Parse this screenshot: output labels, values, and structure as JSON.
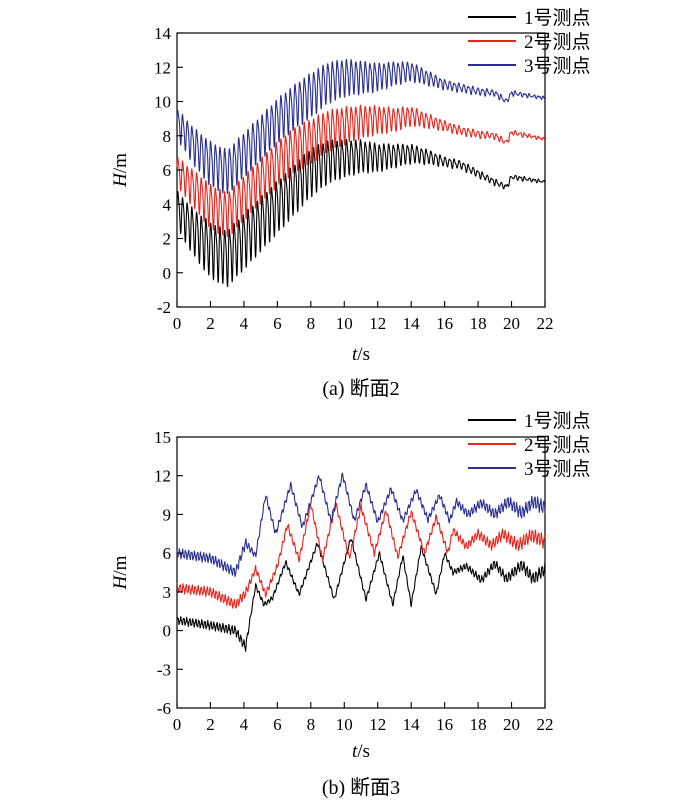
{
  "chart_data": [
    {
      "type": "line",
      "caption": "(a) 断面2",
      "xlabel_var": "t",
      "xlabel_unit": "/s",
      "ylabel_var": "H",
      "ylabel_unit": "/m",
      "xlim": [
        0,
        22
      ],
      "ylim": [
        -2,
        14
      ],
      "xticks": [
        0,
        2,
        4,
        6,
        8,
        10,
        12,
        14,
        16,
        18,
        20,
        22
      ],
      "yticks": [
        -2,
        0,
        2,
        4,
        6,
        8,
        10,
        12,
        14
      ],
      "grid": false,
      "legend_position": "top-right",
      "series": [
        {
          "name": "1号测点",
          "color": "#000000",
          "envelope": [
            [
              0,
              3.8
            ],
            [
              1,
              2.5
            ],
            [
              2,
              1.5
            ],
            [
              3,
              1.0
            ],
            [
              4,
              2.0
            ],
            [
              5,
              3.0
            ],
            [
              6,
              4.0
            ],
            [
              7,
              5.0
            ],
            [
              8,
              6.0
            ],
            [
              9,
              6.6
            ],
            [
              10,
              6.8
            ],
            [
              11,
              6.9
            ],
            [
              12,
              6.8
            ],
            [
              13,
              6.9
            ],
            [
              14,
              7.0
            ],
            [
              15,
              6.8
            ],
            [
              16,
              6.5
            ],
            [
              17,
              6.3
            ],
            [
              18,
              5.8
            ],
            [
              19,
              5.3
            ],
            [
              19.7,
              5.0
            ],
            [
              20,
              5.6
            ],
            [
              22,
              5.3
            ]
          ],
          "amplitude": [
            [
              0,
              1.0
            ],
            [
              2,
              1.5
            ],
            [
              4,
              1.5
            ],
            [
              8,
              1.3
            ],
            [
              10,
              1.0
            ],
            [
              14,
              0.5
            ],
            [
              16,
              0.25
            ],
            [
              19,
              0.15
            ],
            [
              22,
              0.05
            ]
          ]
        },
        {
          "name": "2号测点",
          "color": "#e8231a",
          "envelope": [
            [
              0,
              6.0
            ],
            [
              1,
              5.0
            ],
            [
              2,
              4.0
            ],
            [
              3,
              3.5
            ],
            [
              4,
              4.5
            ],
            [
              5,
              5.5
            ],
            [
              6,
              6.5
            ],
            [
              7,
              7.3
            ],
            [
              8,
              7.8
            ],
            [
              9,
              8.4
            ],
            [
              10,
              8.7
            ],
            [
              11,
              8.9
            ],
            [
              12,
              9.0
            ],
            [
              13,
              9.0
            ],
            [
              14,
              9.2
            ],
            [
              15,
              8.9
            ],
            [
              16,
              8.6
            ],
            [
              17,
              8.3
            ],
            [
              18,
              8.1
            ],
            [
              19,
              8.0
            ],
            [
              19.7,
              7.6
            ],
            [
              20,
              8.2
            ],
            [
              22,
              7.8
            ]
          ],
          "amplitude": [
            [
              0,
              0.8
            ],
            [
              2,
              1.2
            ],
            [
              4,
              1.2
            ],
            [
              8,
              1.2
            ],
            [
              10,
              1.0
            ],
            [
              14,
              0.5
            ],
            [
              16,
              0.25
            ],
            [
              19,
              0.15
            ],
            [
              22,
              0.05
            ]
          ]
        },
        {
          "name": "3号测点",
          "color": "#2a2f8f",
          "envelope": [
            [
              0,
              8.8
            ],
            [
              1,
              7.5
            ],
            [
              2,
              6.5
            ],
            [
              3,
              6.0
            ],
            [
              4,
              7.0
            ],
            [
              5,
              8.0
            ],
            [
              6,
              9.0
            ],
            [
              7,
              9.8
            ],
            [
              8,
              10.5
            ],
            [
              9,
              11.2
            ],
            [
              10,
              11.5
            ],
            [
              11,
              11.5
            ],
            [
              12,
              11.5
            ],
            [
              13,
              11.7
            ],
            [
              14,
              11.8
            ],
            [
              15,
              11.4
            ],
            [
              16,
              11.0
            ],
            [
              17,
              10.8
            ],
            [
              18,
              10.6
            ],
            [
              19,
              10.5
            ],
            [
              19.7,
              10.0
            ],
            [
              20,
              10.5
            ],
            [
              22,
              10.2
            ]
          ],
          "amplitude": [
            [
              0,
              0.8
            ],
            [
              2,
              1.2
            ],
            [
              4,
              1.2
            ],
            [
              8,
              1.2
            ],
            [
              10,
              1.0
            ],
            [
              14,
              0.5
            ],
            [
              16,
              0.25
            ],
            [
              19,
              0.15
            ],
            [
              22,
              0.05
            ]
          ]
        }
      ]
    },
    {
      "type": "line",
      "caption": "(b) 断面3",
      "xlabel_var": "t",
      "xlabel_unit": "/s",
      "ylabel_var": "H",
      "ylabel_unit": "/m",
      "xlim": [
        0,
        22
      ],
      "ylim": [
        -6,
        15
      ],
      "xticks": [
        0,
        2,
        4,
        6,
        8,
        10,
        12,
        14,
        16,
        18,
        20,
        22
      ],
      "yticks": [
        -6,
        -3,
        0,
        3,
        6,
        9,
        12,
        15
      ],
      "grid": false,
      "legend_position": "top-right",
      "series": [
        {
          "name": "1号测点",
          "color": "#000000",
          "peaks": [
            [
              0,
              0.8
            ],
            [
              2,
              0.4
            ],
            [
              3.5,
              0
            ],
            [
              4.1,
              -1.3
            ],
            [
              4.7,
              3.5
            ],
            [
              5.2,
              2.0
            ],
            [
              5.7,
              2.5
            ],
            [
              6.5,
              5.3
            ],
            [
              7.3,
              2.8
            ],
            [
              8.4,
              6.8
            ],
            [
              9.4,
              2.4
            ],
            [
              10.4,
              7.2
            ],
            [
              11.3,
              2.4
            ],
            [
              12.1,
              6.0
            ],
            [
              12.9,
              2.0
            ],
            [
              13.5,
              5.8
            ],
            [
              14.0,
              2.0
            ],
            [
              14.6,
              6.5
            ],
            [
              15.5,
              2.8
            ],
            [
              16.0,
              6.0
            ],
            [
              16.5,
              4.5
            ],
            [
              17.3,
              5.0
            ],
            [
              18.2,
              3.9
            ],
            [
              19.0,
              5.2
            ],
            [
              19.7,
              4.0
            ],
            [
              20.6,
              5.1
            ],
            [
              21.3,
              4.0
            ],
            [
              22,
              4.8
            ]
          ],
          "ripple": [
            [
              0,
              0.25
            ],
            [
              4,
              0.3
            ],
            [
              4.5,
              0.15
            ],
            [
              16,
              0.15
            ],
            [
              22,
              0.4
            ]
          ]
        },
        {
          "name": "2号测点",
          "color": "#e8231a",
          "peaks": [
            [
              0,
              3.3
            ],
            [
              2,
              3.0
            ],
            [
              3.5,
              2.0
            ],
            [
              4.1,
              2.9
            ],
            [
              4.7,
              4.8
            ],
            [
              5.3,
              2.8
            ],
            [
              6.0,
              5.0
            ],
            [
              6.6,
              8.2
            ],
            [
              7.3,
              5.5
            ],
            [
              8.0,
              9.8
            ],
            [
              8.7,
              5.5
            ],
            [
              9.5,
              9.8
            ],
            [
              10.3,
              5.6
            ],
            [
              11.0,
              9.6
            ],
            [
              11.8,
              6.0
            ],
            [
              12.5,
              9.3
            ],
            [
              13.2,
              5.7
            ],
            [
              14.0,
              9.2
            ],
            [
              14.8,
              6.0
            ],
            [
              15.5,
              8.8
            ],
            [
              16.2,
              6.0
            ],
            [
              16.5,
              7.8
            ],
            [
              17.3,
              6.5
            ],
            [
              18.0,
              7.5
            ],
            [
              18.8,
              6.6
            ],
            [
              19.5,
              7.5
            ],
            [
              20.4,
              6.6
            ],
            [
              21.2,
              7.4
            ],
            [
              22,
              6.9
            ]
          ],
          "ripple": [
            [
              0,
              0.3
            ],
            [
              4,
              0.3
            ],
            [
              4.5,
              0.2
            ],
            [
              16,
              0.2
            ],
            [
              22,
              0.45
            ]
          ]
        },
        {
          "name": "3号测点",
          "color": "#2a2f8f",
          "peaks": [
            [
              0,
              6.0
            ],
            [
              2,
              5.6
            ],
            [
              3.5,
              4.5
            ],
            [
              4.1,
              6.8
            ],
            [
              4.7,
              5.8
            ],
            [
              5.3,
              10.5
            ],
            [
              5.9,
              7.5
            ],
            [
              6.8,
              11.3
            ],
            [
              7.5,
              8.0
            ],
            [
              8.5,
              12.0
            ],
            [
              9.2,
              8.5
            ],
            [
              9.9,
              12.1
            ],
            [
              10.6,
              8.5
            ],
            [
              11.3,
              11.3
            ],
            [
              12.0,
              8.4
            ],
            [
              12.8,
              11.0
            ],
            [
              13.5,
              8.5
            ],
            [
              14.3,
              10.9
            ],
            [
              15.0,
              8.6
            ],
            [
              15.7,
              10.5
            ],
            [
              16.3,
              8.5
            ],
            [
              16.7,
              10.0
            ],
            [
              17.4,
              9.0
            ],
            [
              18.2,
              9.9
            ],
            [
              19.0,
              9.0
            ],
            [
              19.8,
              10.0
            ],
            [
              20.6,
              9.1
            ],
            [
              21.3,
              10.0
            ],
            [
              22,
              9.5
            ]
          ],
          "ripple": [
            [
              0,
              0.3
            ],
            [
              4,
              0.3
            ],
            [
              4.5,
              0.2
            ],
            [
              16,
              0.2
            ],
            [
              22,
              0.45
            ]
          ]
        }
      ]
    }
  ]
}
